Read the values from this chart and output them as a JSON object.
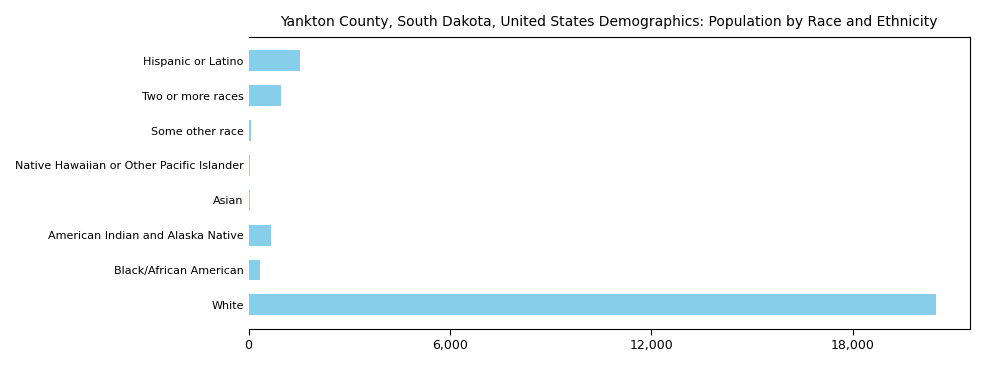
{
  "title": "Yankton County, South Dakota, United States Demographics: Population by Race and Ethnicity",
  "categories": [
    "White",
    "Black/African American",
    "American Indian and Alaska Native",
    "Asian",
    "Native Hawaiian or Other Pacific Islander",
    "Some other race",
    "Two or more races",
    "Hispanic or Latino"
  ],
  "values": [
    20500,
    340,
    680,
    50,
    30,
    60,
    980,
    1520
  ],
  "bar_color": "#87CEEB",
  "xlim": [
    0,
    21500
  ],
  "xticks": [
    0,
    6000,
    12000,
    18000
  ],
  "xticklabels": [
    "0",
    "6,000",
    "12,000",
    "18,000"
  ],
  "background_color": "#ffffff",
  "title_fontsize": 10
}
